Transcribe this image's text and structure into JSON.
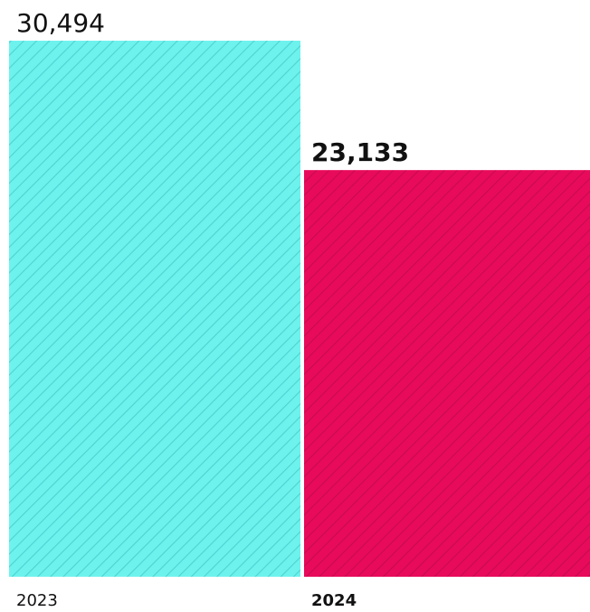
{
  "chart_data": {
    "type": "bar",
    "categories": [
      "2023",
      "2024"
    ],
    "values": [
      30494,
      23133
    ],
    "value_labels": [
      "30,494",
      "23,133"
    ],
    "emphasized_index": 1,
    "colors": [
      "#6EF2EE",
      "#E80B5B"
    ],
    "stripe_colors": [
      "#4FD3D0",
      "#C90A4E"
    ],
    "pattern": "diagonal-stripes",
    "title": "",
    "xlabel": "",
    "ylabel": "",
    "ylim": [
      0,
      30494
    ],
    "grid": false,
    "legend": "none"
  }
}
